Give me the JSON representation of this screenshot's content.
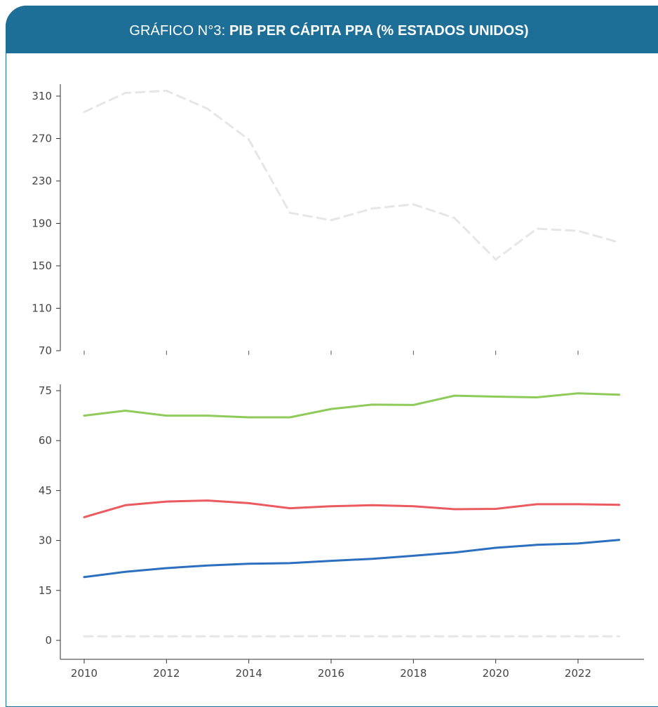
{
  "title": {
    "prefix": "GRÁFICO N°3: ",
    "main": "PIB PER CÁPITA PPA (% ESTADOS UNIDOS)"
  },
  "colors": {
    "header_bg": "#1d6f98",
    "series_green": "#8fcb5b",
    "series_red": "#eb5a5f",
    "series_blue": "#2c6fbf",
    "series_dashed": "#e6e6e6"
  },
  "chart_data": [
    {
      "type": "line",
      "panel": "top",
      "x": [
        2010,
        2011,
        2012,
        2013,
        2014,
        2015,
        2016,
        2017,
        2018,
        2019,
        2020,
        2021,
        2022,
        2023
      ],
      "ylim": [
        70,
        320
      ],
      "yticks": [
        70,
        110,
        150,
        190,
        230,
        270,
        310
      ],
      "grid": false,
      "series": [
        {
          "style": "dashed",
          "values": [
            295,
            313,
            315,
            298,
            269,
            200,
            193,
            204,
            208,
            195,
            156,
            185,
            183,
            172
          ]
        }
      ]
    },
    {
      "type": "line",
      "panel": "bottom",
      "x": [
        2010,
        2011,
        2012,
        2013,
        2014,
        2015,
        2016,
        2017,
        2018,
        2019,
        2020,
        2021,
        2022,
        2023
      ],
      "xticks": [
        2010,
        2012,
        2014,
        2016,
        2018,
        2020,
        2022
      ],
      "ylim": [
        -2.5,
        77
      ],
      "yticks": [
        0,
        15,
        30,
        45,
        60,
        75
      ],
      "grid": false,
      "series": [
        {
          "color": "green",
          "values": [
            67.5,
            69,
            67.5,
            67.5,
            67,
            67,
            69.5,
            70.8,
            70.7,
            73.5,
            73.2,
            73,
            74.2,
            73.8
          ]
        },
        {
          "color": "red",
          "values": [
            37,
            40.6,
            41.7,
            42,
            41.2,
            39.7,
            40.3,
            40.6,
            40.3,
            39.4,
            39.5,
            40.9,
            40.9,
            40.7
          ]
        },
        {
          "color": "blue",
          "values": [
            19,
            20.6,
            21.7,
            22.5,
            23,
            23.2,
            23.9,
            24.5,
            25.4,
            26.4,
            27.8,
            28.7,
            29.1,
            30.2
          ]
        },
        {
          "style": "dashed",
          "values": [
            1.2,
            1.2,
            1.2,
            1.2,
            1.2,
            1.2,
            1.3,
            1.2,
            1.2,
            1.2,
            1.2,
            1.2,
            1.2,
            1.2
          ]
        }
      ]
    }
  ]
}
